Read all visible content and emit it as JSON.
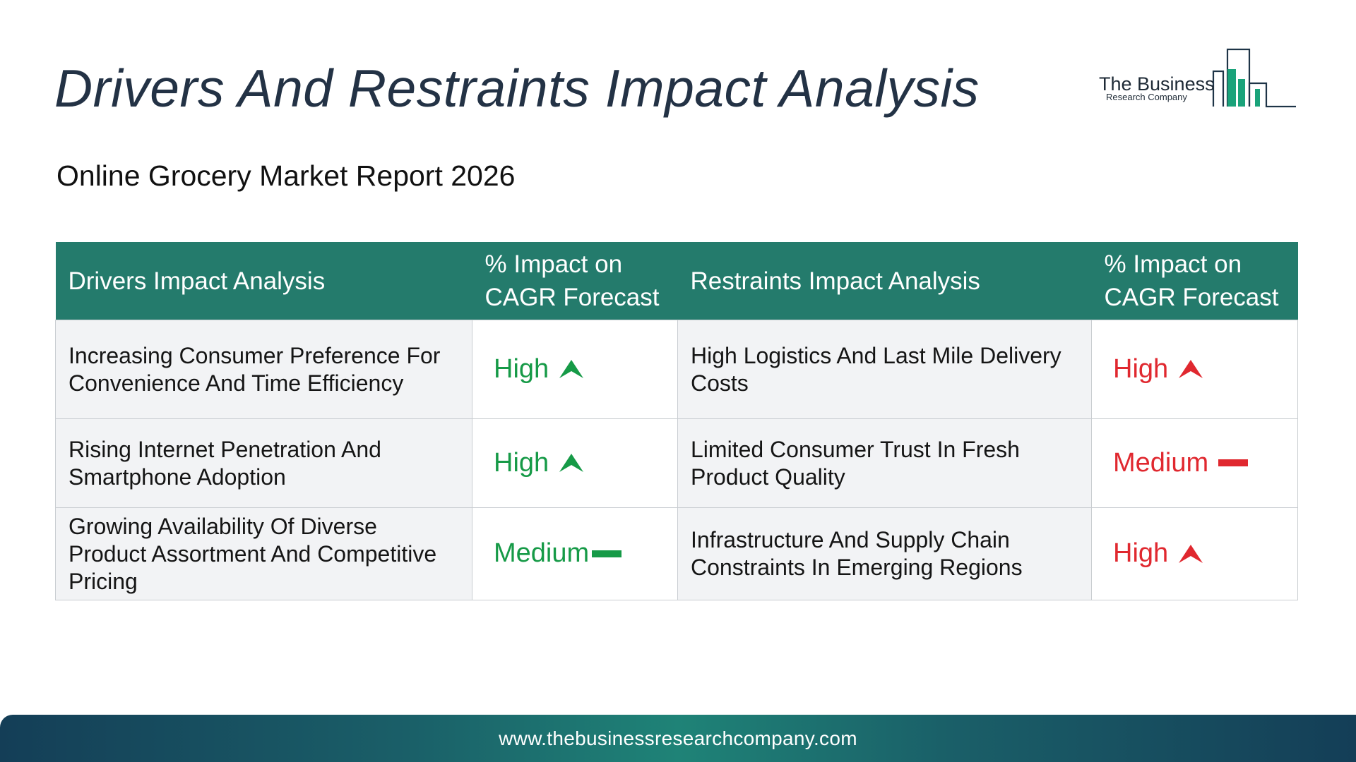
{
  "header": {
    "title": "Drivers And Restraints Impact Analysis",
    "subtitle": "Online Grocery Market Report 2026"
  },
  "logo": {
    "name": "The Business",
    "tagline": "Research Company",
    "accent_color": "#1aa37a"
  },
  "table": {
    "headers": {
      "drivers": "Drivers Impact Analysis",
      "drivers_impact": "% Impact on CAGR Forecast",
      "restraints": "Restraints Impact Analysis",
      "restraints_impact": "% Impact on CAGR Forecast"
    },
    "header_color": "#247b6c",
    "rows": [
      {
        "driver": "Increasing Consumer Preference For Convenience And Time Efficiency",
        "driver_impact": "High",
        "driver_icon": "arrow-up-icon",
        "restraint": "High Logistics And Last Mile Delivery Costs",
        "restraint_impact": "High",
        "restraint_icon": "arrow-up-icon"
      },
      {
        "driver": "Rising Internet Penetration And Smartphone Adoption",
        "driver_impact": "High",
        "driver_icon": "arrow-up-icon",
        "restraint": "Limited Consumer Trust In Fresh Product Quality",
        "restraint_impact": "Medium",
        "restraint_icon": "dash-icon"
      },
      {
        "driver": "Growing Availability Of Diverse Product Assortment And Competitive Pricing",
        "driver_impact": "Medium",
        "driver_icon": "dash-icon",
        "restraint": "Infrastructure And Supply Chain Constraints In Emerging Regions",
        "restraint_impact": "High",
        "restraint_icon": "arrow-up-icon"
      }
    ],
    "driver_color": "#169a47",
    "restraint_color": "#e0282f"
  },
  "footer": {
    "url": "www.thebusinessresearchcompany.com"
  }
}
